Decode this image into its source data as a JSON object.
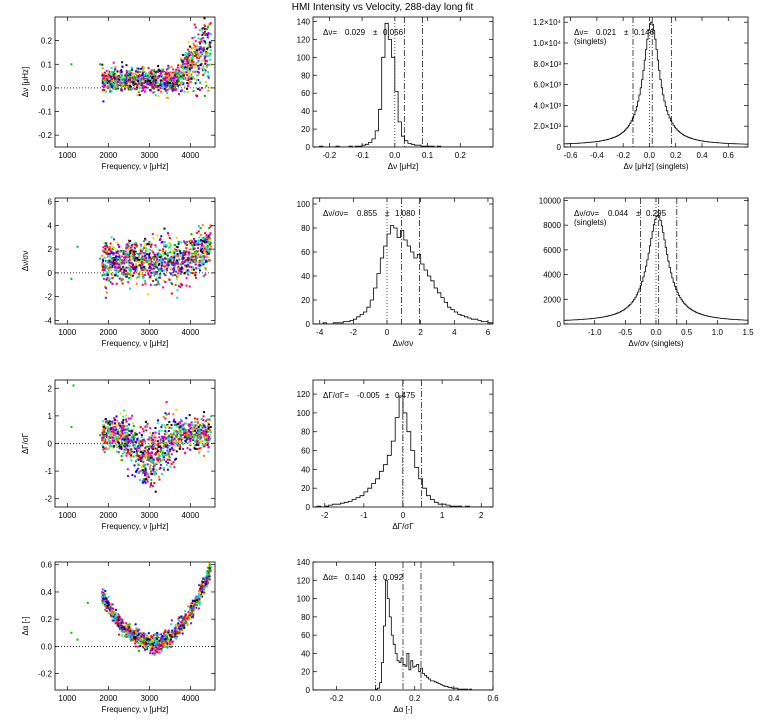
{
  "title": "HMI Intensity vs Velocity, 288-day long fit",
  "chart_data": [
    {
      "id": "scatter_dnu",
      "type": "scatter",
      "xlabel": "Frequency, ν [μHz]",
      "ylabel": "Δν [μHz]",
      "xlim": [
        700,
        4600
      ],
      "ylim": [
        -0.25,
        0.3
      ],
      "xticks": [
        1000,
        2000,
        3000,
        4000
      ],
      "yticks": [
        -0.2,
        -0.1,
        0.0,
        0.1,
        0.2
      ],
      "ytick_labels": [
        "-0.2",
        "-0.1",
        "0.0",
        "0.1",
        "0.2"
      ],
      "zero_line": true,
      "description_points": {
        "x_range": [
          1850,
          4500
        ],
        "trend": "flat near 0.03, rising above 3600 μHz up to ~0.25, scatter ~0.04"
      },
      "isolated_points": [
        [
          1100,
          0.1
        ],
        [
          1800,
          0.1
        ]
      ]
    },
    {
      "id": "hist_dnu",
      "type": "histogram",
      "xlabel": "Δν [μHz]",
      "xlim": [
        -0.25,
        0.3
      ],
      "ylim": [
        0,
        145
      ],
      "xticks": [
        -0.2,
        -0.1,
        0.0,
        0.1,
        0.2
      ],
      "xtick_labels": [
        "-0.2",
        "-0.1",
        "0.0",
        "0.1",
        "0.2"
      ],
      "yticks": [
        0,
        20,
        40,
        60,
        80,
        100,
        120,
        140
      ],
      "annotation": {
        "label": "Δν=",
        "mean": "0.029",
        "pm": "±",
        "sigma": "0.056"
      },
      "mean": 0.029,
      "sigma": 0.056,
      "bin_width": 0.01,
      "bin_start": -0.25,
      "counts": [
        0,
        0,
        1,
        0,
        0,
        0,
        0,
        1,
        0,
        0,
        0,
        1,
        0,
        1,
        1,
        2,
        3,
        5,
        9,
        18,
        42,
        100,
        138,
        120,
        100,
        62,
        28,
        12,
        7,
        4,
        3,
        2,
        2,
        1,
        1,
        1,
        1,
        0,
        1,
        0,
        0,
        0,
        0,
        0,
        0,
        0,
        0,
        0,
        0,
        0,
        0,
        0,
        0,
        0,
        0
      ]
    },
    {
      "id": "hist_dnu_singlets",
      "type": "histogram",
      "xlabel": "Δν [μHz] (singlets)",
      "xlim": [
        -0.65,
        0.75
      ],
      "ylim": [
        0,
        12500
      ],
      "xticks": [
        -0.6,
        -0.4,
        -0.2,
        0.0,
        0.2,
        0.4,
        0.6
      ],
      "xtick_labels": [
        "-0.6",
        "-0.4",
        "-0.2",
        "0.0",
        "0.2",
        "0.4",
        "0.6"
      ],
      "yticks": [
        0,
        2000,
        4000,
        6000,
        8000,
        10000,
        12000
      ],
      "ytick_labels": [
        "0",
        "2.0×10³",
        "4.0×10³",
        "6.0×10³",
        "8.0×10³",
        "1.0×10⁴",
        "1.2×10⁴"
      ],
      "annotation": {
        "label": "Δν=",
        "mean": "0.021",
        "pm": "±",
        "sigma": "0.146",
        "note": "(singlets)"
      },
      "mean": 0.021,
      "sigma": 0.146,
      "profile": {
        "center": 0.015,
        "peak": 12000,
        "halfwidth": 0.075,
        "baseline": 150
      }
    },
    {
      "id": "scatter_dnu_sigma",
      "type": "scatter",
      "xlabel": "Frequency, ν [μHz]",
      "ylabel": "Δν/σν",
      "xlim": [
        700,
        4600
      ],
      "ylim": [
        -4.3,
        6.3
      ],
      "xticks": [
        1000,
        2000,
        3000,
        4000
      ],
      "yticks": [
        -4,
        -2,
        0,
        2,
        4,
        6
      ],
      "zero_line": true,
      "description_points": {
        "x_range": [
          1850,
          4500
        ],
        "trend": "centered near 0.9, scatter ~1.1"
      },
      "isolated_points": [
        [
          1100,
          -0.5
        ],
        [
          1250,
          2.2
        ],
        [
          1800,
          1.2
        ]
      ]
    },
    {
      "id": "hist_dnu_sigma",
      "type": "histogram",
      "xlabel": "Δν/σν",
      "xlim": [
        -4.4,
        6.3
      ],
      "ylim": [
        0,
        105
      ],
      "xticks": [
        -4,
        -2,
        0,
        2,
        4,
        6
      ],
      "yticks": [
        0,
        20,
        40,
        60,
        80,
        100
      ],
      "annotation": {
        "label": "Δν/σν=",
        "mean": "0.855",
        "pm": "±",
        "sigma": "1.080"
      },
      "mean": 0.855,
      "sigma": 1.08,
      "bin_width": 0.2,
      "bin_start": -4.4,
      "counts": [
        0,
        0,
        0,
        1,
        0,
        0,
        1,
        1,
        1,
        2,
        2,
        3,
        4,
        6,
        8,
        10,
        14,
        20,
        30,
        42,
        55,
        65,
        75,
        82,
        80,
        72,
        78,
        70,
        65,
        60,
        55,
        58,
        50,
        45,
        40,
        36,
        30,
        26,
        22,
        18,
        14,
        12,
        10,
        8,
        7,
        6,
        5,
        4,
        4,
        3,
        2,
        2,
        1,
        1
      ]
    },
    {
      "id": "hist_dnu_sigma_singlets",
      "type": "histogram",
      "xlabel": "Δν/σν (singlets)",
      "xlim": [
        -1.5,
        1.5
      ],
      "ylim": [
        0,
        10200
      ],
      "xticks": [
        -1.0,
        -0.5,
        0.0,
        0.5,
        1.0,
        1.5
      ],
      "xtick_labels": [
        "-1.0",
        "-0.5",
        "0.0",
        "0.5",
        "1.0",
        "1.5"
      ],
      "yticks": [
        0,
        2000,
        4000,
        6000,
        8000,
        10000
      ],
      "annotation": {
        "label": "Δν/σν=",
        "mean": "0.044",
        "pm": "±",
        "sigma": "0.295",
        "note": "(singlets)"
      },
      "mean": 0.044,
      "sigma": 0.295,
      "profile": {
        "center": 0.03,
        "peak": 8800,
        "halfwidth": 0.2,
        "baseline": 150
      }
    },
    {
      "id": "scatter_dgamma",
      "type": "scatter",
      "xlabel": "Frequency, ν [μHz]",
      "ylabel": "ΔΓ/σΓ",
      "xlim": [
        700,
        4600
      ],
      "ylim": [
        -2.3,
        2.3
      ],
      "xticks": [
        1000,
        2000,
        3000,
        4000
      ],
      "yticks": [
        -2,
        -1,
        0,
        1,
        2
      ],
      "zero_line": true,
      "description_points": {
        "x_range": [
          1850,
          4500
        ],
        "trend": "near 0.3 at edges, dipping to -0.6 around 3000 μHz"
      },
      "isolated_points": [
        [
          1100,
          0.6
        ],
        [
          1150,
          2.1
        ],
        [
          1800,
          0.3
        ]
      ]
    },
    {
      "id": "hist_dgamma",
      "type": "histogram",
      "xlabel": "ΔΓ/σΓ",
      "xlim": [
        -2.3,
        2.3
      ],
      "ylim": [
        0,
        135
      ],
      "xticks": [
        -2,
        -1,
        0,
        1,
        2
      ],
      "yticks": [
        0,
        20,
        40,
        60,
        80,
        100,
        120
      ],
      "annotation": {
        "label": "ΔΓ/σΓ=",
        "mean": "-0.005",
        "pm": "±",
        "sigma": "0.475"
      },
      "mean": -0.005,
      "sigma": 0.475,
      "bin_width": 0.1,
      "bin_start": -2.3,
      "counts": [
        0,
        1,
        0,
        1,
        2,
        3,
        3,
        4,
        5,
        6,
        8,
        10,
        12,
        16,
        20,
        25,
        30,
        38,
        45,
        55,
        70,
        95,
        118,
        100,
        80,
        60,
        42,
        30,
        20,
        12,
        8,
        5,
        3,
        3,
        2,
        1,
        1,
        1,
        0,
        1,
        0,
        0,
        0,
        0,
        0,
        0
      ]
    },
    {
      "id": "scatter_dalpha",
      "type": "scatter",
      "xlabel": "Frequency, ν [μHz]",
      "ylabel": "Δα [-]",
      "xlim": [
        700,
        4600
      ],
      "ylim": [
        -0.32,
        0.62
      ],
      "xticks": [
        1000,
        2000,
        3000,
        4000
      ],
      "yticks": [
        -0.2,
        0.0,
        0.2,
        0.4,
        0.6
      ],
      "ytick_labels": [
        "-0.2",
        "0.0",
        "0.2",
        "0.4",
        "0.6"
      ],
      "zero_line": true,
      "description_points": {
        "x_range": [
          1850,
          4500
        ],
        "trend": "parabola: 0.35 at 1900 μHz, minimum ~0.02 at 3100 μHz, 0.58 at 4500 μHz"
      },
      "isolated_points": [
        [
          1100,
          0.1
        ],
        [
          1250,
          0.05
        ],
        [
          1500,
          0.32
        ]
      ]
    },
    {
      "id": "hist_dalpha",
      "type": "histogram",
      "xlabel": "Δα [-]",
      "xlim": [
        -0.32,
        0.6
      ],
      "ylim": [
        0,
        140
      ],
      "xticks": [
        -0.2,
        0.0,
        0.2,
        0.4,
        0.6
      ],
      "xtick_labels": [
        "-0.2",
        "0.0",
        "0.2",
        "0.4",
        "0.6"
      ],
      "yticks": [
        0,
        20,
        40,
        60,
        80,
        100,
        120,
        140
      ],
      "annotation": {
        "label": "Δα=",
        "mean": "0.140",
        "pm": "±",
        "sigma": "0.092"
      },
      "mean": 0.14,
      "sigma": 0.092,
      "bin_width": 0.01,
      "bin_start": -0.32,
      "counts": [
        0,
        0,
        0,
        0,
        0,
        0,
        0,
        0,
        0,
        0,
        0,
        0,
        0,
        0,
        0,
        0,
        0,
        0,
        0,
        0,
        0,
        0,
        0,
        0,
        0,
        0,
        0,
        0,
        0,
        0,
        0,
        0,
        1,
        2,
        8,
        30,
        70,
        120,
        100,
        80,
        60,
        50,
        40,
        32,
        30,
        35,
        28,
        26,
        40,
        22,
        32,
        25,
        26,
        28,
        20,
        24,
        18,
        16,
        14,
        12,
        10,
        10,
        9,
        8,
        7,
        6,
        5,
        4,
        4,
        3,
        3,
        2,
        2,
        2,
        1,
        1,
        1,
        1,
        1,
        0,
        1,
        0,
        0,
        0,
        0,
        0,
        0,
        0,
        0,
        0,
        0,
        0
      ]
    }
  ]
}
